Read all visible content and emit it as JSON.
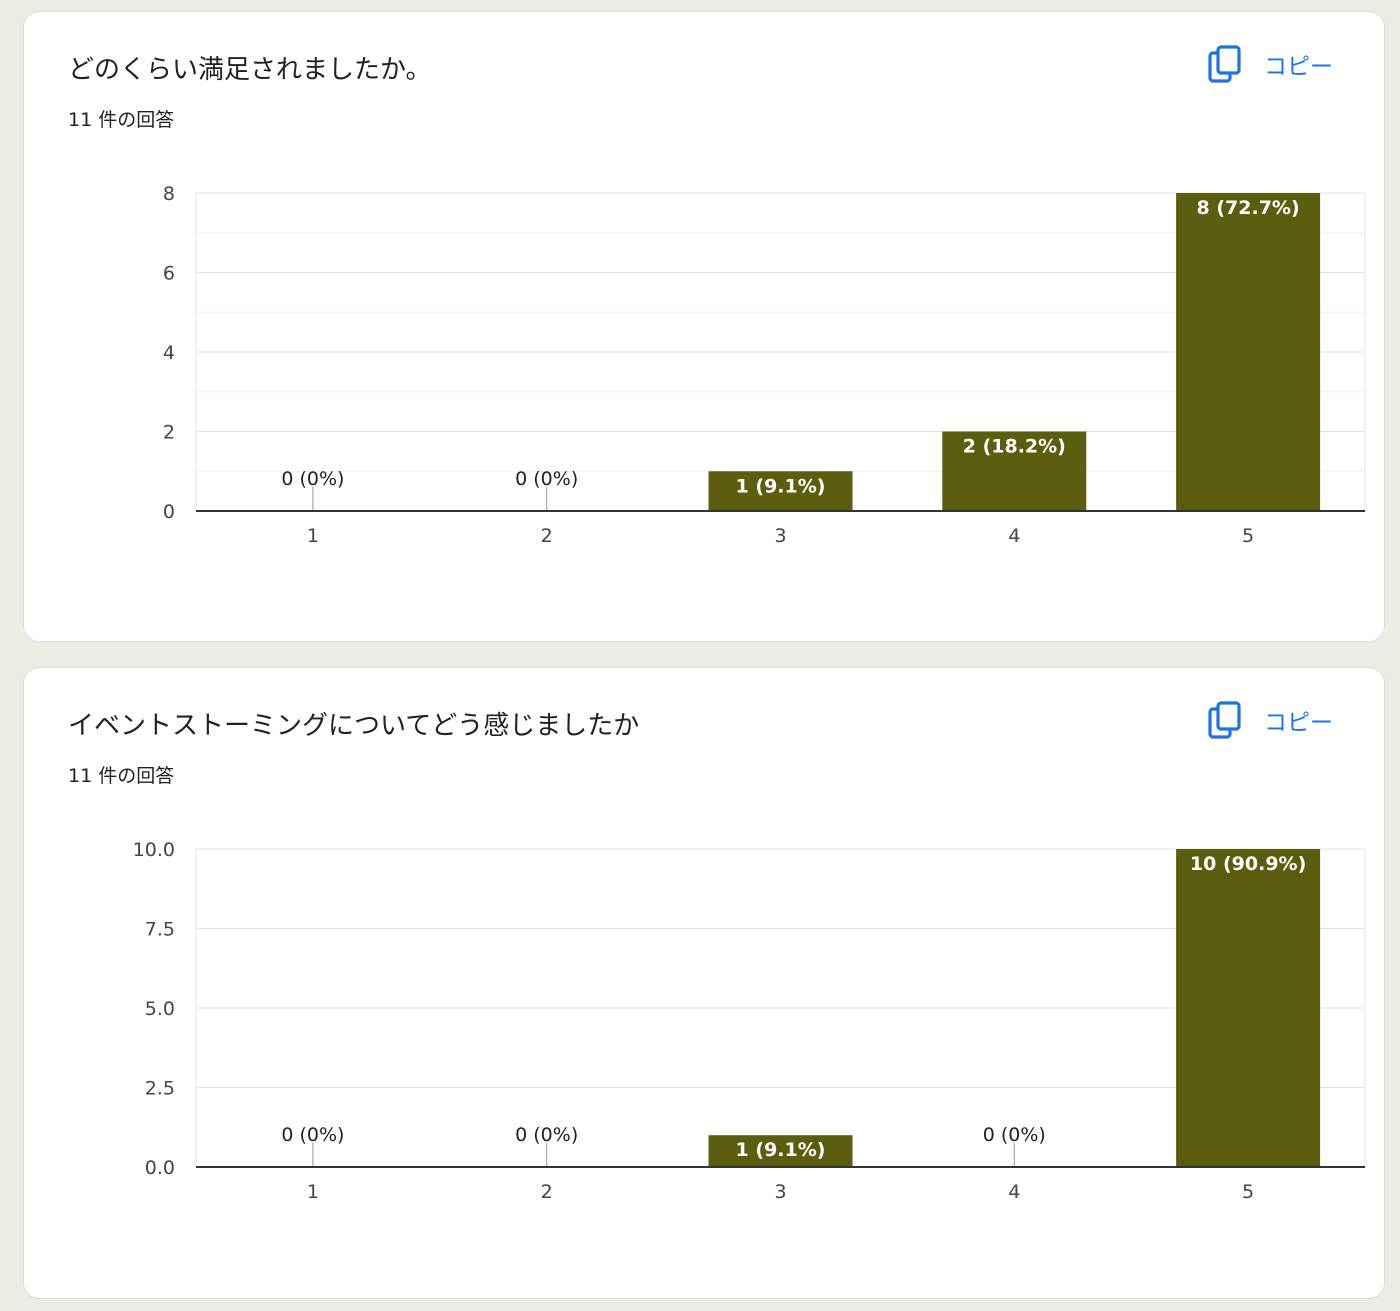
{
  "theme": {
    "bar_color": "#5b5e0f",
    "link_color": "#1a73e8",
    "background": "#ecebe4"
  },
  "cards": [
    {
      "title": "どのくらい満足されましたか。",
      "response_count": "11 件の回答",
      "copy_label": "コピー",
      "copy_icon": "copy-icon"
    },
    {
      "title": "イベントストーミングについてどう感じましたか",
      "response_count": "11 件の回答",
      "copy_label": "コピー",
      "copy_icon": "copy-icon"
    }
  ],
  "chart_data": [
    {
      "type": "bar",
      "categories": [
        "1",
        "2",
        "3",
        "4",
        "5"
      ],
      "values": [
        0,
        0,
        1,
        2,
        8
      ],
      "data_labels": [
        "0 (0%)",
        "0 (0%)",
        "1 (9.1%)",
        "2 (18.2%)",
        "8 (72.7%)"
      ],
      "ylim": [
        0,
        8
      ],
      "y_ticks": [
        "0",
        "2",
        "4",
        "6",
        "8"
      ],
      "y_tick_values": [
        0,
        2,
        4,
        6,
        8
      ],
      "minor_grid_step": 1,
      "grid": true,
      "legend": "none"
    },
    {
      "type": "bar",
      "categories": [
        "1",
        "2",
        "3",
        "4",
        "5"
      ],
      "values": [
        0,
        0,
        1,
        0,
        10
      ],
      "data_labels": [
        "0 (0%)",
        "0 (0%)",
        "1 (9.1%)",
        "0 (0%)",
        "10 (90.9%)"
      ],
      "ylim": [
        0,
        10
      ],
      "y_ticks": [
        "0.0",
        "2.5",
        "5.0",
        "7.5",
        "10.0"
      ],
      "y_tick_values": [
        0,
        2.5,
        5,
        7.5,
        10
      ],
      "minor_grid_step": null,
      "grid": true,
      "legend": "none"
    }
  ]
}
